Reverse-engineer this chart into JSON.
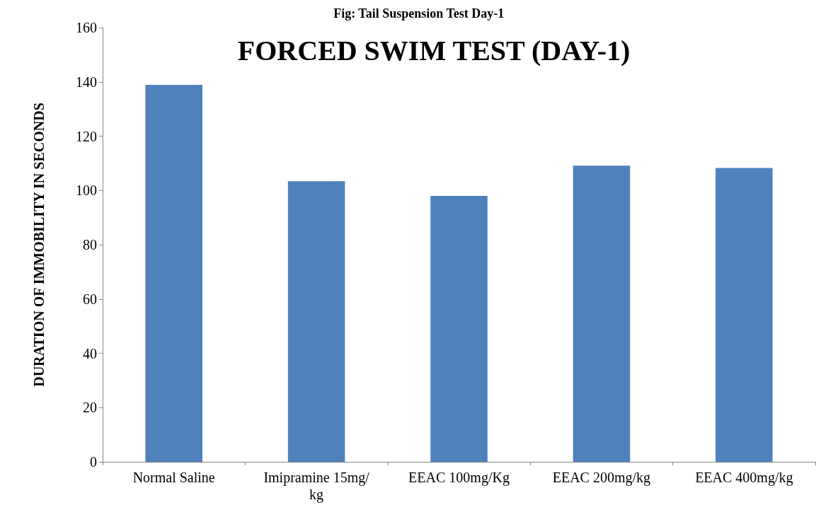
{
  "chart_data": {
    "type": "bar",
    "title": "FORCED SWIM TEST (DAY-1)",
    "ylabel": "DURATION OF IMMOBILITY IN SECONDS",
    "annotations": [
      "Fig: Tail Suspension Test Day-1"
    ],
    "categories": [
      "Normal Saline",
      "Imipramine 15mg/kg",
      "EEAC 100mg/Kg",
      "EEAC 200mg/kg",
      "EEAC 400mg/kg"
    ],
    "values": [
      138.9,
      103.4,
      98,
      109.1,
      108.3
    ],
    "color": "#4f81bd",
    "ylim": [
      0,
      160
    ],
    "yticks": [
      0,
      20,
      40,
      60,
      80,
      100,
      120,
      140,
      160
    ],
    "grid": false
  }
}
